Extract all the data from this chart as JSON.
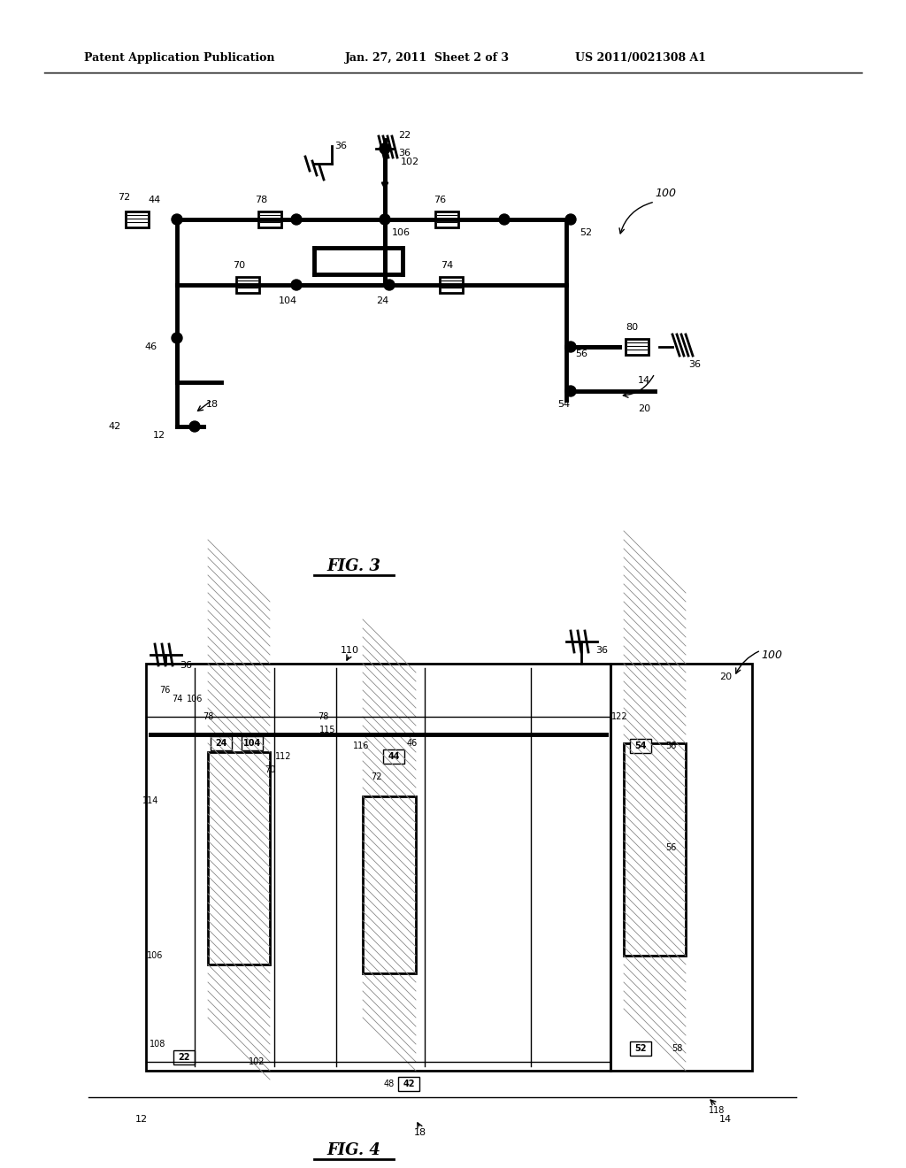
{
  "bg_color": "#ffffff",
  "line_color": "#000000",
  "header_text": "Patent Application Publication",
  "header_date": "Jan. 27, 2011  Sheet 2 of 3",
  "header_patent": "US 2011/0021308 A1",
  "fig3_label": "FIG. 3",
  "fig4_label": "FIG. 4"
}
